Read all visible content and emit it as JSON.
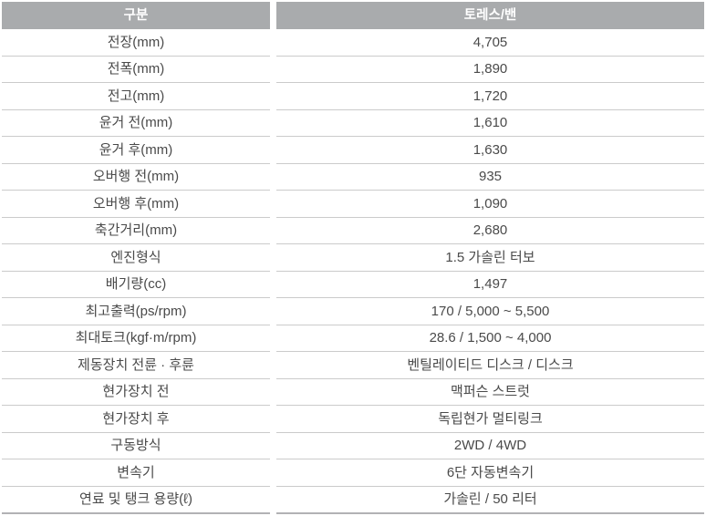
{
  "table": {
    "headers": {
      "category": "구분",
      "model": "토레스/밴"
    },
    "rows": [
      {
        "label": "전장(mm)",
        "value": "4,705"
      },
      {
        "label": "전폭(mm)",
        "value": "1,890"
      },
      {
        "label": "전고(mm)",
        "value": "1,720"
      },
      {
        "label": "윤거 전(mm)",
        "value": "1,610"
      },
      {
        "label": "윤거 후(mm)",
        "value": "1,630"
      },
      {
        "label": "오버행 전(mm)",
        "value": "935"
      },
      {
        "label": "오버행 후(mm)",
        "value": "1,090"
      },
      {
        "label": "축간거리(mm)",
        "value": "2,680"
      },
      {
        "label": "엔진형식",
        "value": "1.5 가솔린 터보"
      },
      {
        "label": "배기량(cc)",
        "value": "1,497"
      },
      {
        "label": "최고출력(ps/rpm)",
        "value": "170 / 5,000 ~ 5,500"
      },
      {
        "label": "최대토크(kgf·m/rpm)",
        "value": "28.6 / 1,500 ~ 4,000"
      },
      {
        "label": "제동장치 전륜 · 후륜",
        "value": "벤틸레이티드 디스크 / 디스크"
      },
      {
        "label": "현가장치 전",
        "value": "맥퍼슨 스트럿"
      },
      {
        "label": "현가장치 후",
        "value": "독립현가 멀티링크"
      },
      {
        "label": "구동방식",
        "value": "2WD / 4WD"
      },
      {
        "label": "변속기",
        "value": "6단 자동변속기"
      },
      {
        "label": "연료 및 탱크 용량(ℓ)",
        "value": "가솔린 / 50 리터"
      }
    ],
    "colors": {
      "header_bg": "#a9abad",
      "header_text": "#ffffff",
      "body_text": "#4a4a4a",
      "row_divider": "#cbcbcb",
      "bottom_border": "#b2b2b5"
    }
  }
}
